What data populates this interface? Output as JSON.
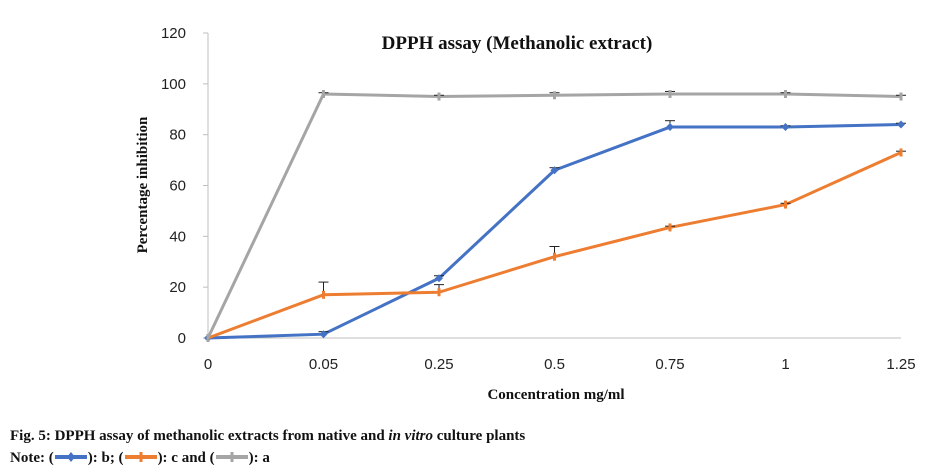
{
  "chart_data": {
    "type": "line",
    "title": "DPPH assay (Methanolic extract)",
    "xlabel": "Concentration mg/ml",
    "ylabel": "Percentage inhibition",
    "categories": [
      "0",
      "0.05",
      "0.25",
      "0.5",
      "0.75",
      "1",
      "1.25"
    ],
    "ylim": [
      0,
      120
    ],
    "yticks": [
      0,
      20,
      40,
      60,
      80,
      100,
      120
    ],
    "grid": false,
    "series": [
      {
        "color": "#4472c4",
        "values": [
          0,
          1.5,
          23.5,
          66,
          83,
          83,
          84
        ],
        "errors": [
          0,
          1,
          1,
          1,
          2.5,
          0.5,
          0.5
        ]
      },
      {
        "color": "#ed7d31",
        "values": [
          0,
          17,
          18,
          32,
          43.5,
          52.5,
          73
        ],
        "errors": [
          0,
          5,
          3,
          4,
          0.5,
          0.5,
          0.5
        ]
      },
      {
        "color": "#a5a5a5",
        "values": [
          0,
          96,
          95,
          95.5,
          96,
          96,
          95
        ],
        "errors": [
          0,
          0.5,
          0.5,
          1,
          1,
          0.5,
          0.5
        ]
      }
    ]
  },
  "caption": {
    "line1": "Fig. 5: DPPH assay of methanolic extracts from native and ",
    "line1_italic": "in vitro",
    "line1_end": " culture plants",
    "note_prefix": "Note: (",
    "note_b": "): b; (",
    "note_c": "): c and (",
    "note_a": "): a"
  }
}
